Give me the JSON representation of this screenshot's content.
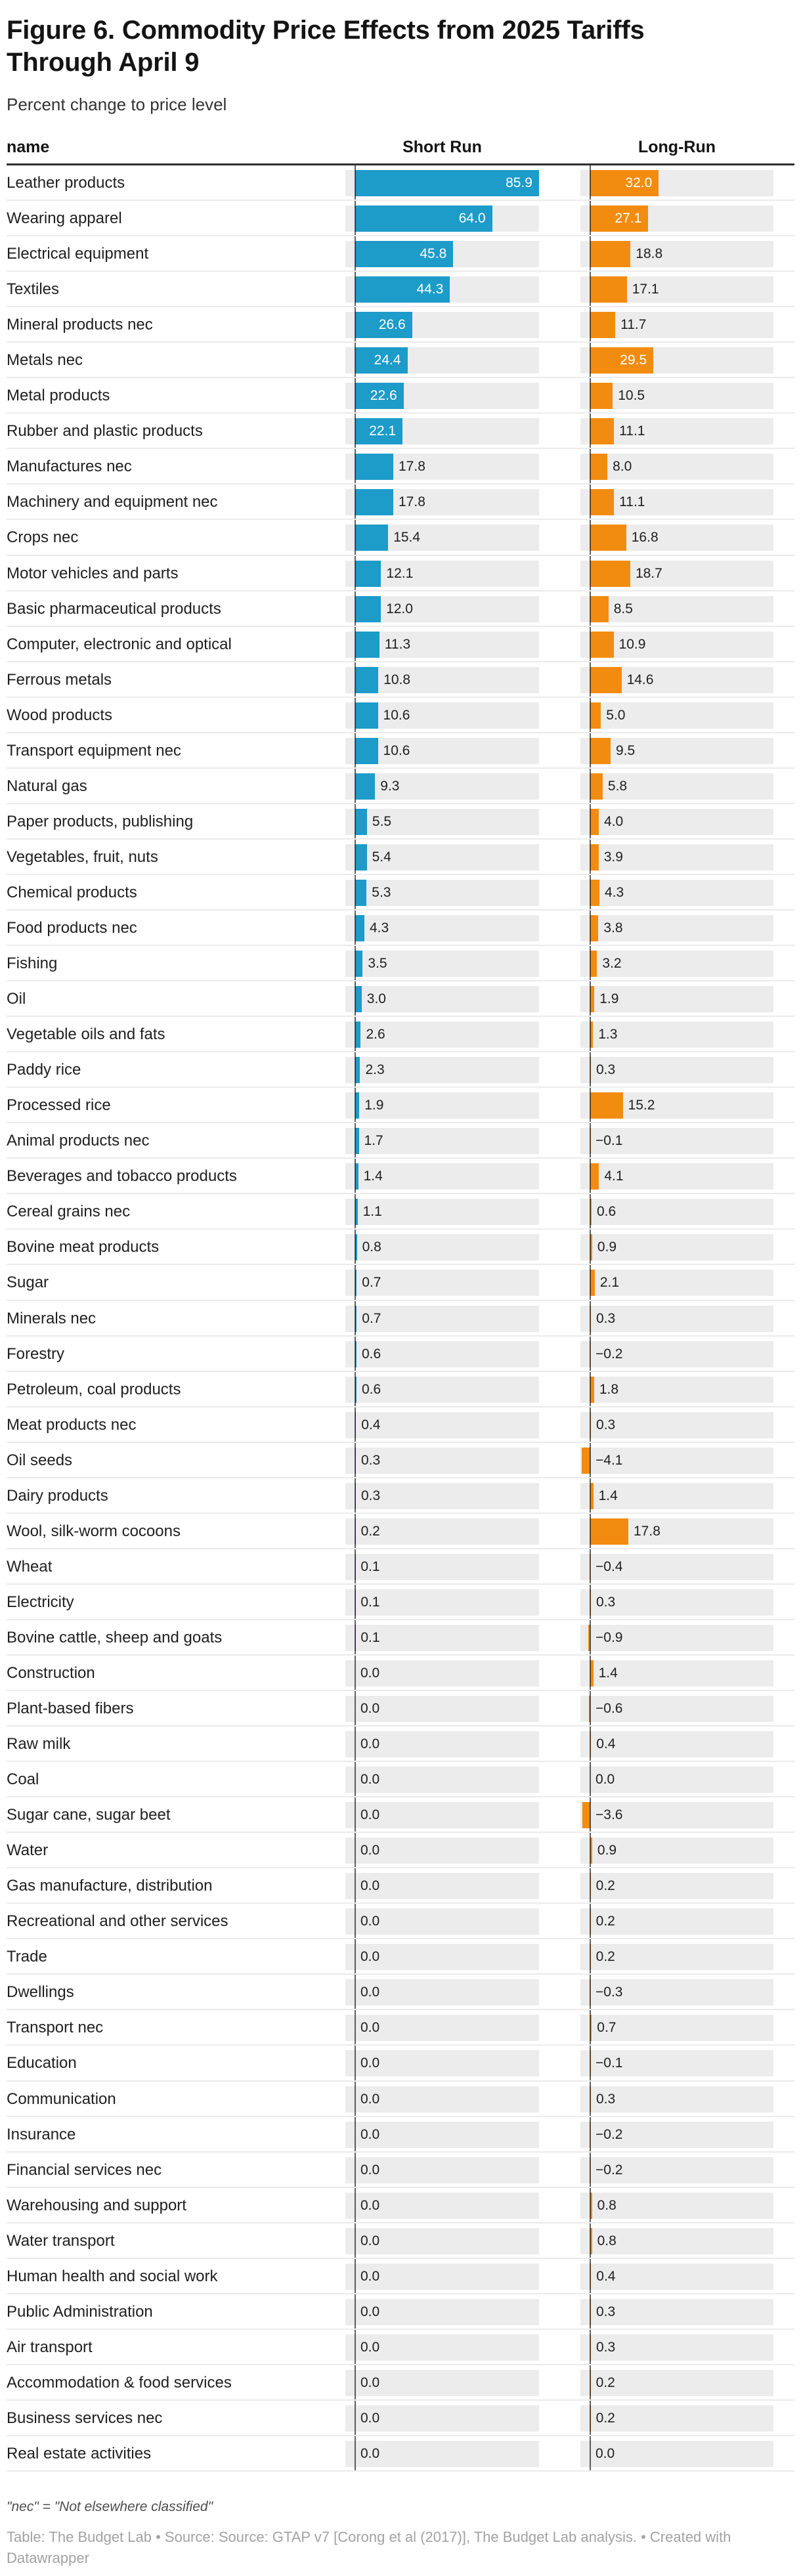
{
  "title": "Figure 6. Commodity Price Effects from 2025 Tariffs Through April 9",
  "title_lines": [
    "Figure 6. Commodity Price Effects from 2025 Tariffs",
    "Through April 9"
  ],
  "subtitle": "Percent change to price level",
  "columns": {
    "name": "name",
    "short_run": "Short Run",
    "long_run": "Long-Run"
  },
  "colors": {
    "short_run_bar": "#1d9bc9",
    "long_run_bar": "#f28c10",
    "track": "#ececec",
    "baseline": "#616161",
    "separator": "#ebebeb",
    "header_rule": "#2e2e2e"
  },
  "footnote": "\"nec\" = \"Not elsewhere classified\"",
  "credit": "Table: The Budget Lab • Source: Source: GTAP v7 [Corong et al (2017)], The Budget Lab analysis. • Created with Datawrapper",
  "credit_lines": [
    "Table: The Budget Lab • Source: Source: GTAP v7 [Corong et al (2017)], The Budget Lab analysis. • Created with",
    "Datawrapper"
  ],
  "chart_data": {
    "type": "bar",
    "title": "Figure 6. Commodity Price Effects from 2025 Tariffs Through April 9",
    "subtitle": "Percent change to price level",
    "value_unit": "percent change to price level",
    "legend_position": "column headers",
    "grid": false,
    "xlim": [
      -4.1,
      85.9
    ],
    "categories": [
      "Leather products",
      "Wearing apparel",
      "Electrical equipment",
      "Textiles",
      "Mineral products nec",
      "Metals nec",
      "Metal products",
      "Rubber and plastic products",
      "Manufactures nec",
      "Machinery and equipment nec",
      "Crops nec",
      "Motor vehicles and parts",
      "Basic pharmaceutical products",
      "Computer, electronic and optical",
      "Ferrous metals",
      "Wood products",
      "Transport equipment nec",
      "Natural gas",
      "Paper products, publishing",
      "Vegetables, fruit, nuts",
      "Chemical products",
      "Food products nec",
      "Fishing",
      "Oil",
      "Vegetable oils and fats",
      "Paddy rice",
      "Processed rice",
      "Animal products nec",
      "Beverages and tobacco products",
      "Cereal grains nec",
      "Bovine meat products",
      "Sugar",
      "Minerals nec",
      "Forestry",
      "Petroleum, coal products",
      "Meat products nec",
      "Oil seeds",
      "Dairy products",
      "Wool, silk-worm cocoons",
      "Wheat",
      "Electricity",
      "Bovine cattle, sheep and goats",
      "Construction",
      "Plant-based fibers",
      "Raw milk",
      "Coal",
      "Sugar cane, sugar beet",
      "Water",
      "Gas manufacture, distribution",
      "Recreational and other services",
      "Trade",
      "Dwellings",
      "Transport nec",
      "Education",
      "Communication",
      "Insurance",
      "Financial services nec",
      "Warehousing and support",
      "Water transport",
      "Human health and social work",
      "Public Administration",
      "Air transport",
      "Accommodation & food services",
      "Business services nec",
      "Real estate activities"
    ],
    "series": [
      {
        "name": "Short Run",
        "values": [
          85.9,
          64.0,
          45.8,
          44.3,
          26.6,
          24.4,
          22.6,
          22.1,
          17.8,
          17.8,
          15.4,
          12.1,
          12.0,
          11.3,
          10.8,
          10.6,
          10.6,
          9.3,
          5.5,
          5.4,
          5.3,
          4.3,
          3.5,
          3.0,
          2.6,
          2.3,
          1.9,
          1.7,
          1.4,
          1.1,
          0.8,
          0.7,
          0.7,
          0.6,
          0.6,
          0.4,
          0.3,
          0.3,
          0.2,
          0.1,
          0.1,
          0.1,
          0.0,
          0.0,
          0.0,
          0.0,
          0.0,
          0.0,
          0.0,
          0.0,
          0.0,
          0.0,
          0.0,
          0.0,
          0.0,
          0.0,
          0.0,
          0.0,
          0.0,
          0.0,
          0.0,
          0.0,
          0.0,
          0.0,
          0.0
        ]
      },
      {
        "name": "Long-Run",
        "values": [
          32.0,
          27.1,
          18.8,
          17.1,
          11.7,
          29.5,
          10.5,
          11.1,
          8.0,
          11.1,
          16.8,
          18.7,
          8.5,
          10.9,
          14.6,
          5.0,
          9.5,
          5.8,
          4.0,
          3.9,
          4.3,
          3.8,
          3.2,
          1.9,
          1.3,
          0.3,
          15.2,
          -0.1,
          4.1,
          0.6,
          0.9,
          2.1,
          0.3,
          -0.2,
          1.8,
          0.3,
          -4.1,
          1.4,
          17.8,
          -0.4,
          0.3,
          -0.9,
          1.4,
          -0.6,
          0.4,
          0.0,
          -3.6,
          0.9,
          0.2,
          0.2,
          0.2,
          -0.3,
          0.7,
          -0.1,
          0.3,
          -0.2,
          -0.2,
          0.8,
          0.8,
          0.4,
          0.3,
          0.3,
          0.2,
          0.2,
          0.0
        ]
      }
    ]
  }
}
